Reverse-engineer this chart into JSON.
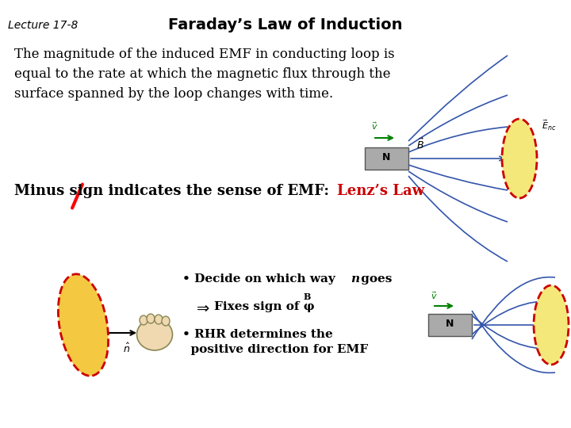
{
  "background_color": "#ffffff",
  "lecture_label": "Lecture 17-8",
  "title": "Faraday’s Law of Induction",
  "body_text": "The magnitude of the induced EMF in conducting loop is\nequal to the rate at which the magnetic flux through the\nsurface spanned by the loop changes with time.",
  "minus_sign_text": "Minus sign indicates the sense of EMF: ",
  "lenz_law_text": "Lenz’s Law",
  "bullet1": "• Decide on which way ",
  "bullet1_italic": "n",
  "bullet1_end": " goes",
  "arrow_text": "⇒    Fixes sign of φ",
  "phi_sub": "B",
  "bullet2": "• RHR determines the\n  positive direction for EMF",
  "title_fontsize": 14,
  "lecture_fontsize": 10,
  "body_fontsize": 12,
  "minus_fontsize": 13,
  "bullet_fontsize": 11
}
